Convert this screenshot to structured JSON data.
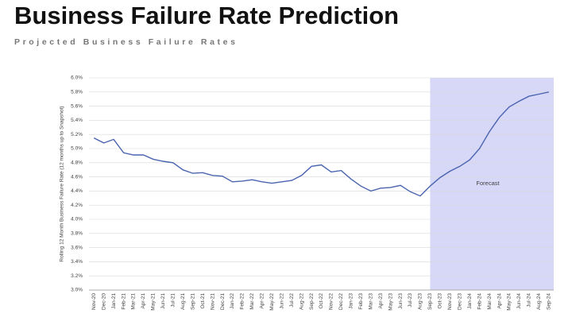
{
  "chart_data": {
    "type": "line",
    "title": "Business Failure Rate Prediction",
    "subtitle": "Projected Business Failure Rates",
    "y_label": "Rolling 12 Month Business Failure Rate (12 months up to Snapshot)",
    "annotation": "Forecast",
    "forecast_start": "Sep-23",
    "forecast_color": "#c9c9f5",
    "categories": [
      "Nov-20",
      "Dec-20",
      "Jan-21",
      "Feb-21",
      "Mar-21",
      "Apr-21",
      "May-21",
      "Jun-21",
      "Jul-21",
      "Aug-21",
      "Sep-21",
      "Oct-21",
      "Nov-21",
      "Dec-21",
      "Jan-22",
      "Feb-22",
      "Mar-22",
      "Apr-22",
      "May-22",
      "Jun-22",
      "Jul-22",
      "Aug-22",
      "Sep-22",
      "Oct-22",
      "Nov-22",
      "Dec-22",
      "Jan-23",
      "Feb-23",
      "Mar-23",
      "Apr-23",
      "May-23",
      "Jun-23",
      "Jul-23",
      "Aug-23",
      "Sep-23",
      "Oct-23",
      "Nov-23",
      "Dec-23",
      "Jan-24",
      "Feb-24",
      "Mar-24",
      "Apr-24",
      "May-24",
      "Jun-24",
      "Jul-24",
      "Aug-24",
      "Sep-24"
    ],
    "series": [
      {
        "name": "Business Failure Rate",
        "color": "#4a64b0",
        "values": [
          5.15,
          5.08,
          5.13,
          4.94,
          4.91,
          4.91,
          4.85,
          4.82,
          4.8,
          4.7,
          4.65,
          4.66,
          4.62,
          4.61,
          4.53,
          4.54,
          4.56,
          4.53,
          4.51,
          4.53,
          4.55,
          4.62,
          4.75,
          4.77,
          4.67,
          4.69,
          4.57,
          4.47,
          4.4,
          4.44,
          4.45,
          4.48,
          4.39,
          4.33,
          4.47,
          4.59,
          4.68,
          4.75,
          4.84,
          5.0,
          5.24,
          5.44,
          5.59,
          5.67,
          5.74,
          5.77,
          5.8
        ]
      }
    ],
    "ylim": [
      3.0,
      6.0
    ],
    "yticks": [
      {
        "value": 3.0,
        "label": "3.0%"
      },
      {
        "value": 3.2,
        "label": "3.2%"
      },
      {
        "value": 3.4,
        "label": "3.4%"
      },
      {
        "value": 3.6,
        "label": "3.6%"
      },
      {
        "value": 3.8,
        "label": "3.8%"
      },
      {
        "value": 4.0,
        "label": "4.0%"
      },
      {
        "value": 4.2,
        "label": "4.2%"
      },
      {
        "value": 4.4,
        "label": "4.4%"
      },
      {
        "value": 4.6,
        "label": "4.6%"
      },
      {
        "value": 4.8,
        "label": "4.8%"
      },
      {
        "value": 5.0,
        "label": "5.0%"
      },
      {
        "value": 5.2,
        "label": "5.2%"
      },
      {
        "value": 5.4,
        "label": "5.4%"
      },
      {
        "value": 5.6,
        "label": "5.6%"
      },
      {
        "value": 5.8,
        "label": "5.8%"
      },
      {
        "value": 6.0,
        "label": "6.0%"
      }
    ],
    "grid": true
  }
}
